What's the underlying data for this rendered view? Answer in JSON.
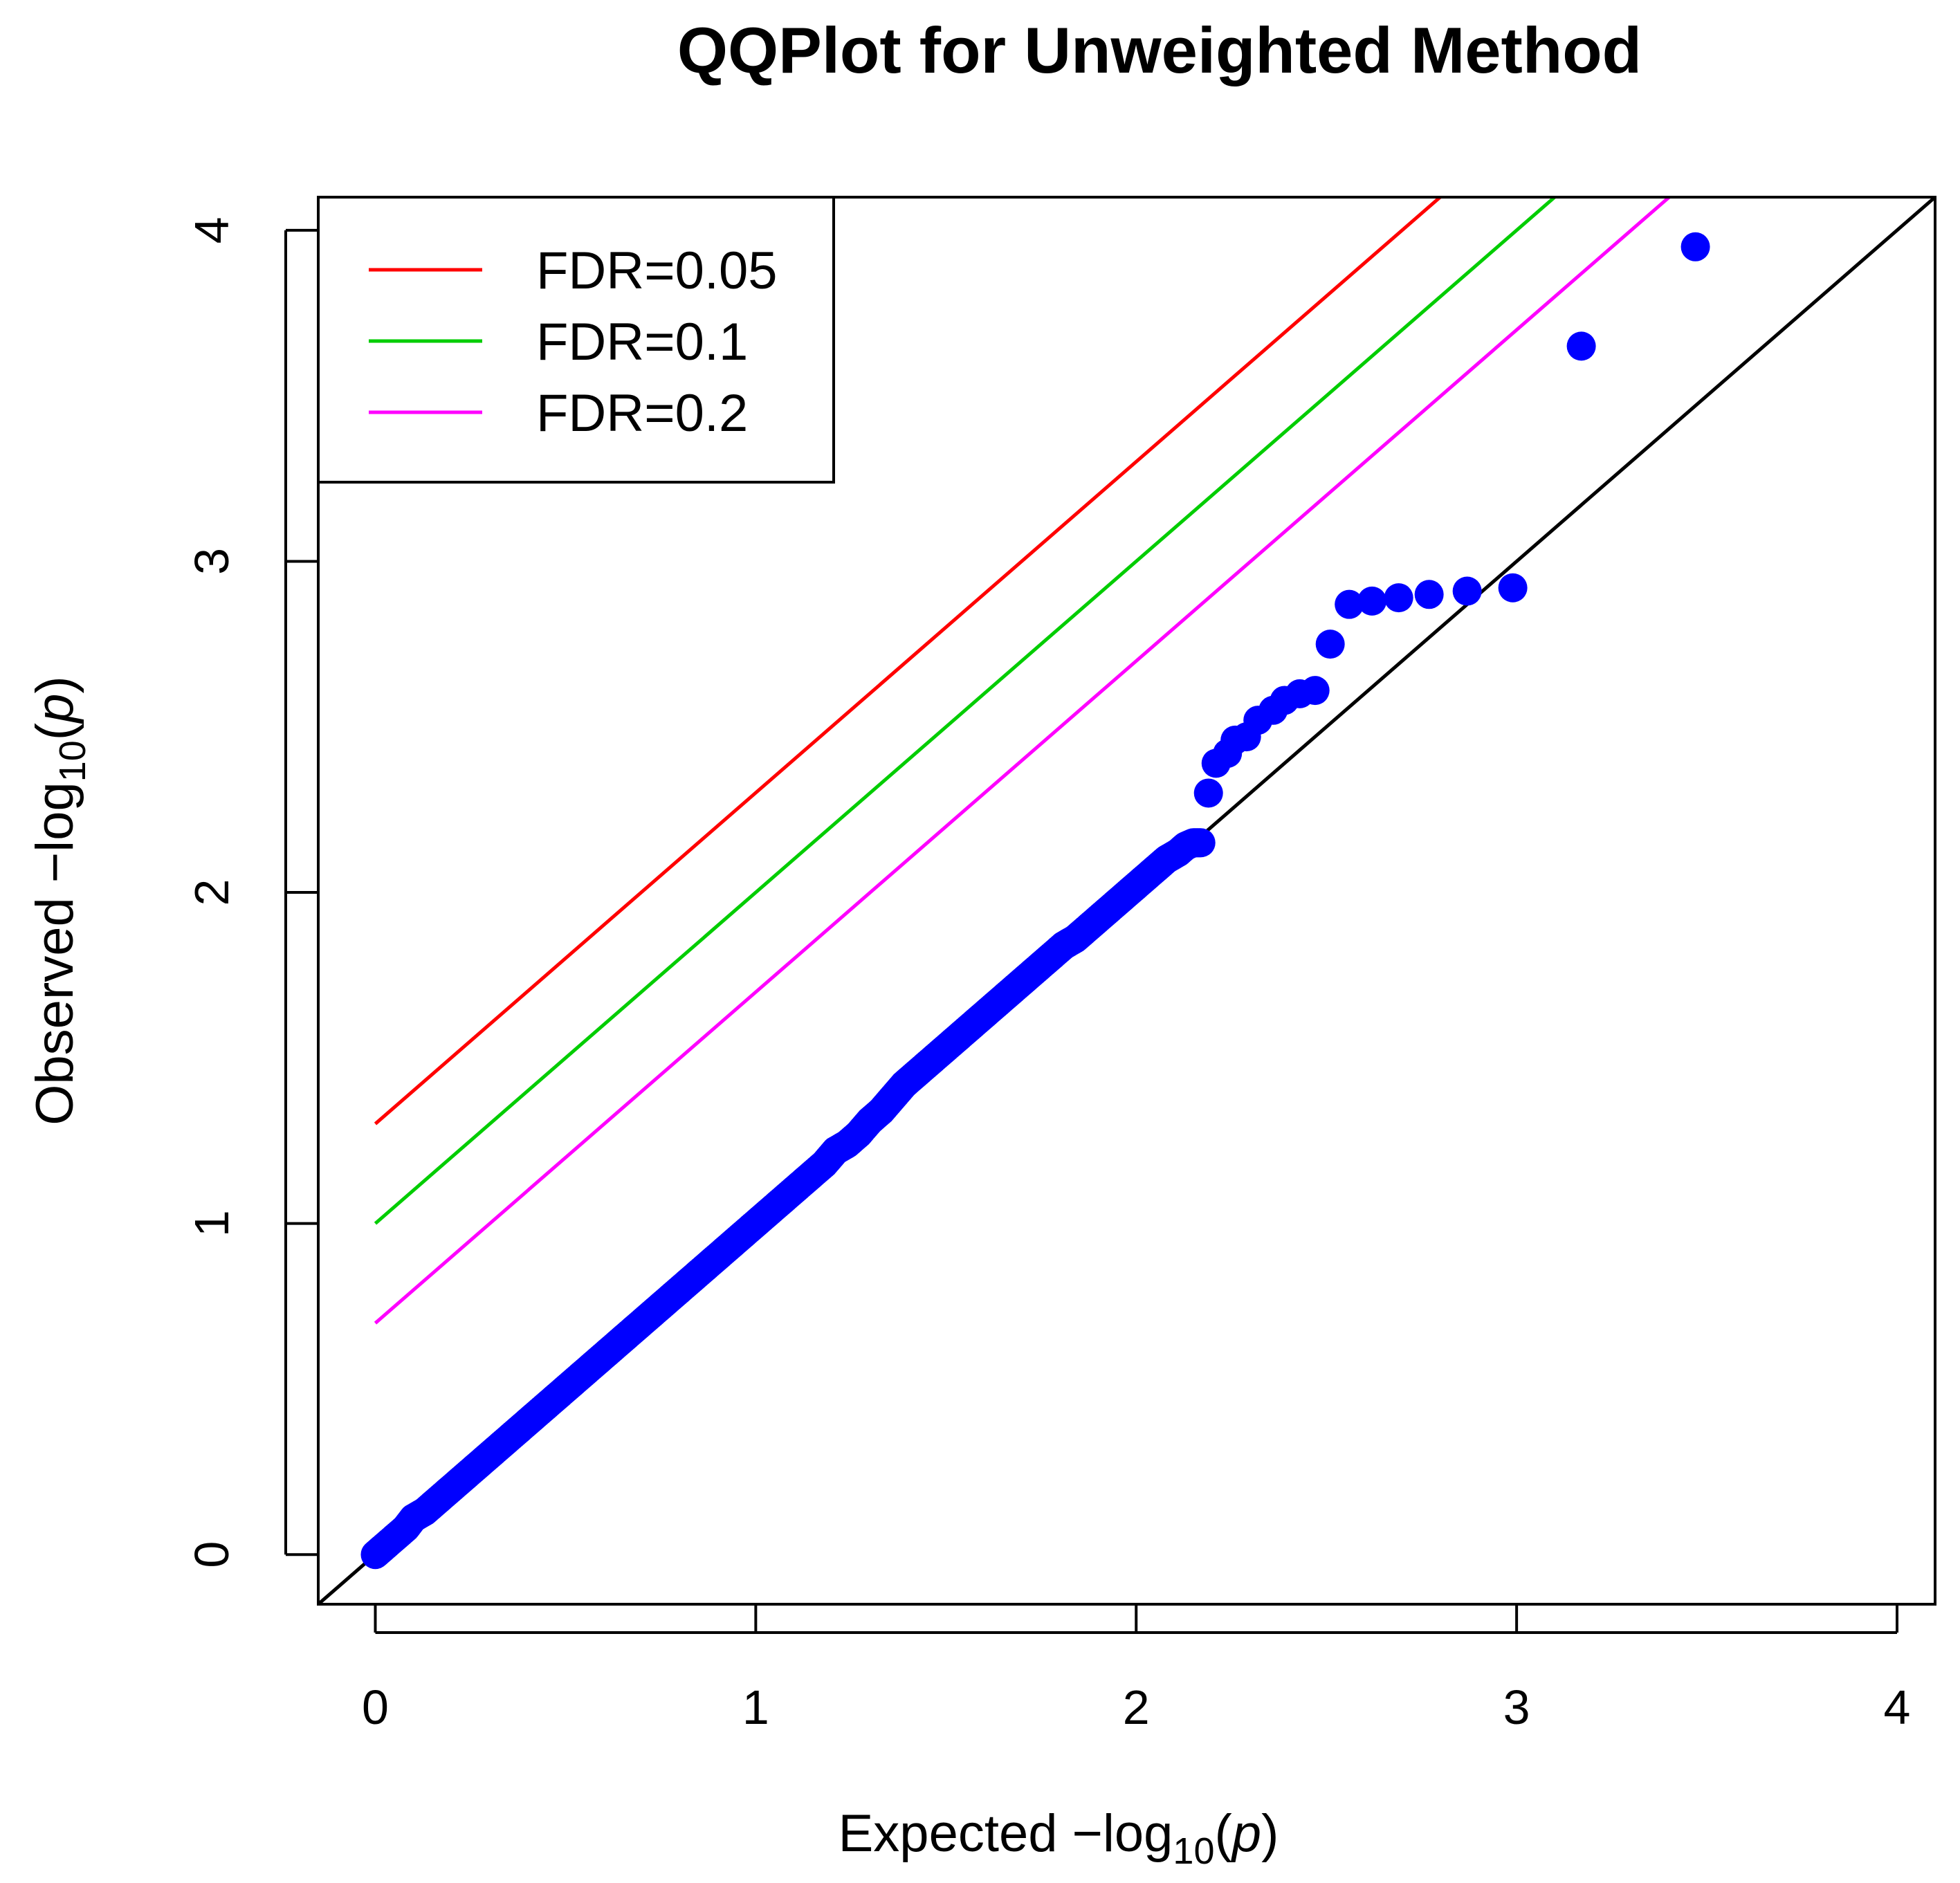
{
  "chart_data": {
    "type": "scatter",
    "title": "QQPlot for Unweighted Method",
    "xlabel": "Expected  −log10(p)",
    "ylabel": "Observed  −log10(p)",
    "xlabel_parts": {
      "prefix": "Expected  −log",
      "sub": "10",
      "open": "(",
      "var": "p",
      "close": ")"
    },
    "ylabel_parts": {
      "prefix": "Observed  −log",
      "sub": "10",
      "open": "(",
      "var": "p",
      "close": ")"
    },
    "xlim": [
      -0.15,
      4.1
    ],
    "ylim": [
      -0.15,
      4.1
    ],
    "xticks": [
      0,
      1,
      2,
      3,
      4
    ],
    "yticks": [
      0,
      1,
      2,
      3,
      4
    ],
    "xtick_labels": [
      "0",
      "1",
      "2",
      "3",
      "4"
    ],
    "ytick_labels": [
      "0",
      "1",
      "2",
      "3",
      "4"
    ],
    "legend_position": "top-left",
    "point_color": "#0000ff",
    "reference_line": {
      "slope": 1,
      "intercept": 0,
      "color": "#000000"
    },
    "series": [
      {
        "name": "FDR=0.05",
        "color": "#ff0000",
        "intercept": 1.301,
        "slope": 1,
        "x_start": 0
      },
      {
        "name": "FDR=0.1",
        "color": "#00cd00",
        "intercept": 1.0,
        "slope": 1,
        "x_start": 0
      },
      {
        "name": "FDR=0.2",
        "color": "#ff00ff",
        "intercept": 0.699,
        "slope": 1,
        "x_start": 0
      }
    ],
    "points_top": {
      "x": [
        3.47,
        3.17,
        2.99,
        2.87,
        2.77,
        2.69,
        2.62,
        2.56,
        2.51,
        2.47,
        2.43,
        2.39,
        2.36,
        2.32,
        2.29,
        2.26,
        2.24,
        2.21,
        2.19
      ],
      "y": [
        3.95,
        3.65,
        2.92,
        2.91,
        2.9,
        2.89,
        2.88,
        2.87,
        2.75,
        2.61,
        2.6,
        2.58,
        2.55,
        2.52,
        2.47,
        2.46,
        2.42,
        2.39,
        2.3
      ]
    },
    "points_bulk": {
      "x": [
        0.0,
        0.02,
        0.05,
        0.08,
        0.1,
        0.13,
        0.16,
        0.19,
        0.22,
        0.25,
        0.28,
        0.31,
        0.34,
        0.37,
        0.4,
        0.43,
        0.46,
        0.49,
        0.52,
        0.55,
        0.58,
        0.61,
        0.64,
        0.67,
        0.7,
        0.73,
        0.76,
        0.79,
        0.82,
        0.85,
        0.88,
        0.91,
        0.94,
        0.97,
        1.0,
        1.03,
        1.06,
        1.09,
        1.12,
        1.15,
        1.18,
        1.21,
        1.24,
        1.27,
        1.3,
        1.33,
        1.36,
        1.39,
        1.42,
        1.45,
        1.48,
        1.51,
        1.54,
        1.57,
        1.6,
        1.63,
        1.66,
        1.69,
        1.72,
        1.75,
        1.78,
        1.81,
        1.84,
        1.87,
        1.9,
        1.93,
        1.96,
        1.99,
        2.02,
        2.05,
        2.08,
        2.11,
        2.13,
        2.15,
        2.17
      ],
      "y": [
        0.0,
        0.02,
        0.05,
        0.08,
        0.11,
        0.13,
        0.16,
        0.19,
        0.22,
        0.25,
        0.28,
        0.31,
        0.34,
        0.37,
        0.4,
        0.43,
        0.46,
        0.49,
        0.52,
        0.55,
        0.58,
        0.61,
        0.64,
        0.67,
        0.7,
        0.73,
        0.76,
        0.79,
        0.82,
        0.85,
        0.88,
        0.91,
        0.94,
        0.97,
        1.0,
        1.03,
        1.06,
        1.09,
        1.12,
        1.15,
        1.18,
        1.22,
        1.24,
        1.27,
        1.31,
        1.34,
        1.38,
        1.42,
        1.45,
        1.48,
        1.51,
        1.54,
        1.57,
        1.6,
        1.63,
        1.66,
        1.69,
        1.72,
        1.75,
        1.78,
        1.81,
        1.84,
        1.86,
        1.89,
        1.92,
        1.95,
        1.98,
        2.01,
        2.04,
        2.07,
        2.1,
        2.12,
        2.14,
        2.15,
        2.15
      ]
    }
  }
}
